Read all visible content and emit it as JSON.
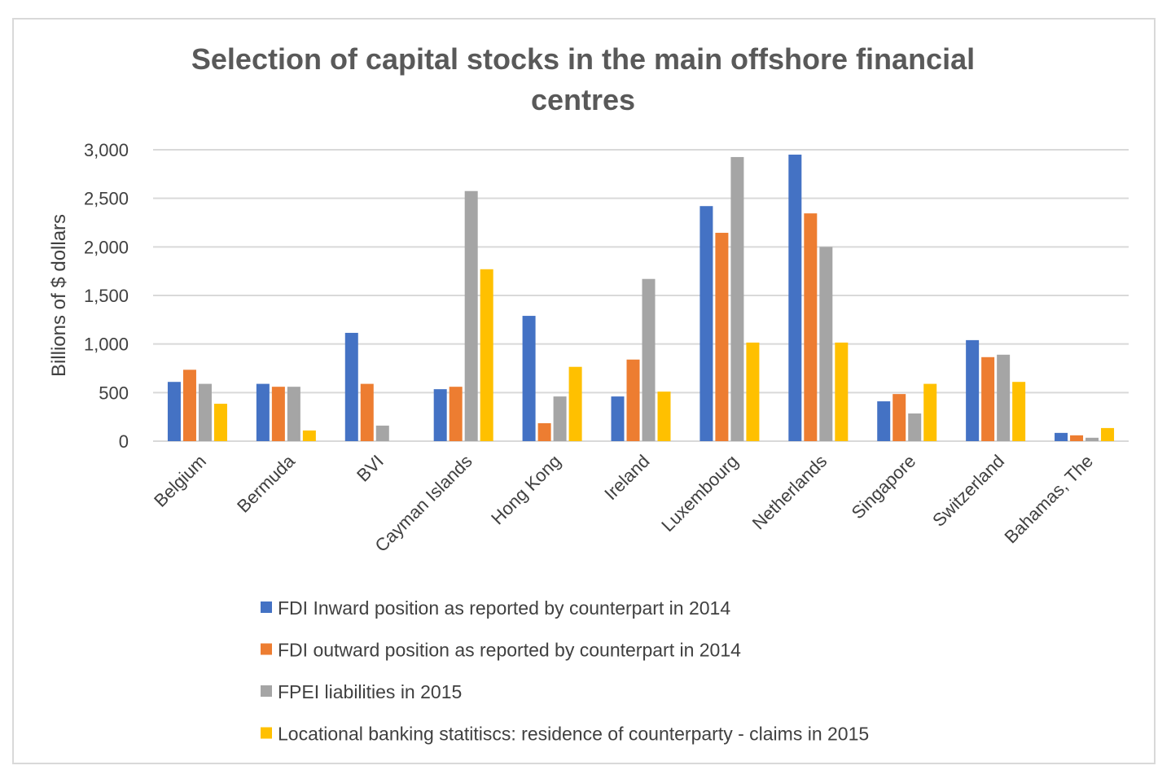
{
  "chart_data": {
    "type": "bar",
    "title": "Selection of capital stocks in the main offshore financial centres",
    "title_lines": [
      "Selection of capital stocks in the main offshore financial",
      "centres"
    ],
    "xlabel": "",
    "ylabel": "Billions of $ dollars",
    "ylim": [
      0,
      3000
    ],
    "yticks": [
      0,
      500,
      1000,
      1500,
      2000,
      2500,
      3000
    ],
    "ytick_labels": [
      "0",
      "500",
      "1,000",
      "1,500",
      "2,000",
      "2,500",
      "3,000"
    ],
    "grid": true,
    "legend_position": "bottom",
    "categories": [
      "Belgium",
      "Bermuda",
      "BVI",
      "Cayman Islands",
      "Hong Kong",
      "Ireland",
      "Luxembourg",
      "Netherlands",
      "Singapore",
      "Switzerland",
      "Bahamas, The"
    ],
    "series": [
      {
        "name": "FDI Inward position as reported by counterpart in 2014",
        "color": "#4472c4",
        "values": [
          610,
          590,
          1115,
          535,
          1290,
          460,
          2420,
          2950,
          410,
          1040,
          85
        ]
      },
      {
        "name": "FDI outward position as reported by counterpart in 2014",
        "color": "#ed7d31",
        "values": [
          735,
          560,
          590,
          560,
          185,
          840,
          2145,
          2345,
          485,
          865,
          60
        ]
      },
      {
        "name": "FPEI liabilities in  2015",
        "color": "#a5a5a5",
        "values": [
          590,
          560,
          160,
          2575,
          460,
          1670,
          2925,
          2000,
          285,
          890,
          35
        ]
      },
      {
        "name": "Locational banking statitiscs: residence of counterparty - claims in 2015",
        "color": "#ffc000",
        "values": [
          385,
          110,
          0,
          1770,
          765,
          510,
          1015,
          1015,
          590,
          610,
          135
        ]
      }
    ]
  }
}
